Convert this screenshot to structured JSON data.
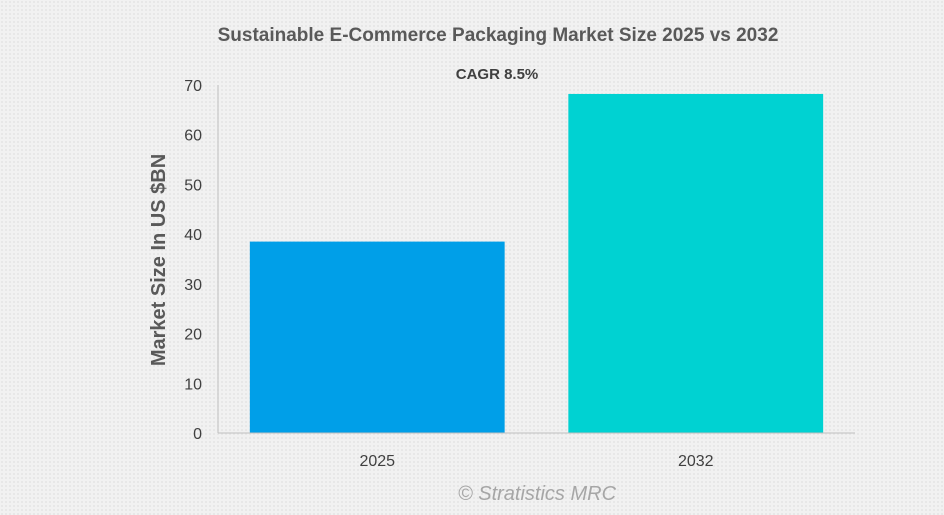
{
  "chart_data": {
    "type": "bar",
    "title": "Sustainable E-Commerce Packaging Market Size 2025 vs 2032",
    "annotation": "CAGR 8.5%",
    "xlabel": "",
    "ylabel": "Market Size In US $BN",
    "categories": [
      "2025",
      "2032"
    ],
    "values": [
      38.5,
      68.2
    ],
    "colors": [
      "#009fe8",
      "#00d2d2"
    ],
    "ylim": [
      0,
      70
    ],
    "yticks": [
      "0",
      "10",
      "20",
      "30",
      "40",
      "50",
      "60",
      "70"
    ],
    "grid": false,
    "legend": "none"
  },
  "watermark": "© Stratistics MRC"
}
